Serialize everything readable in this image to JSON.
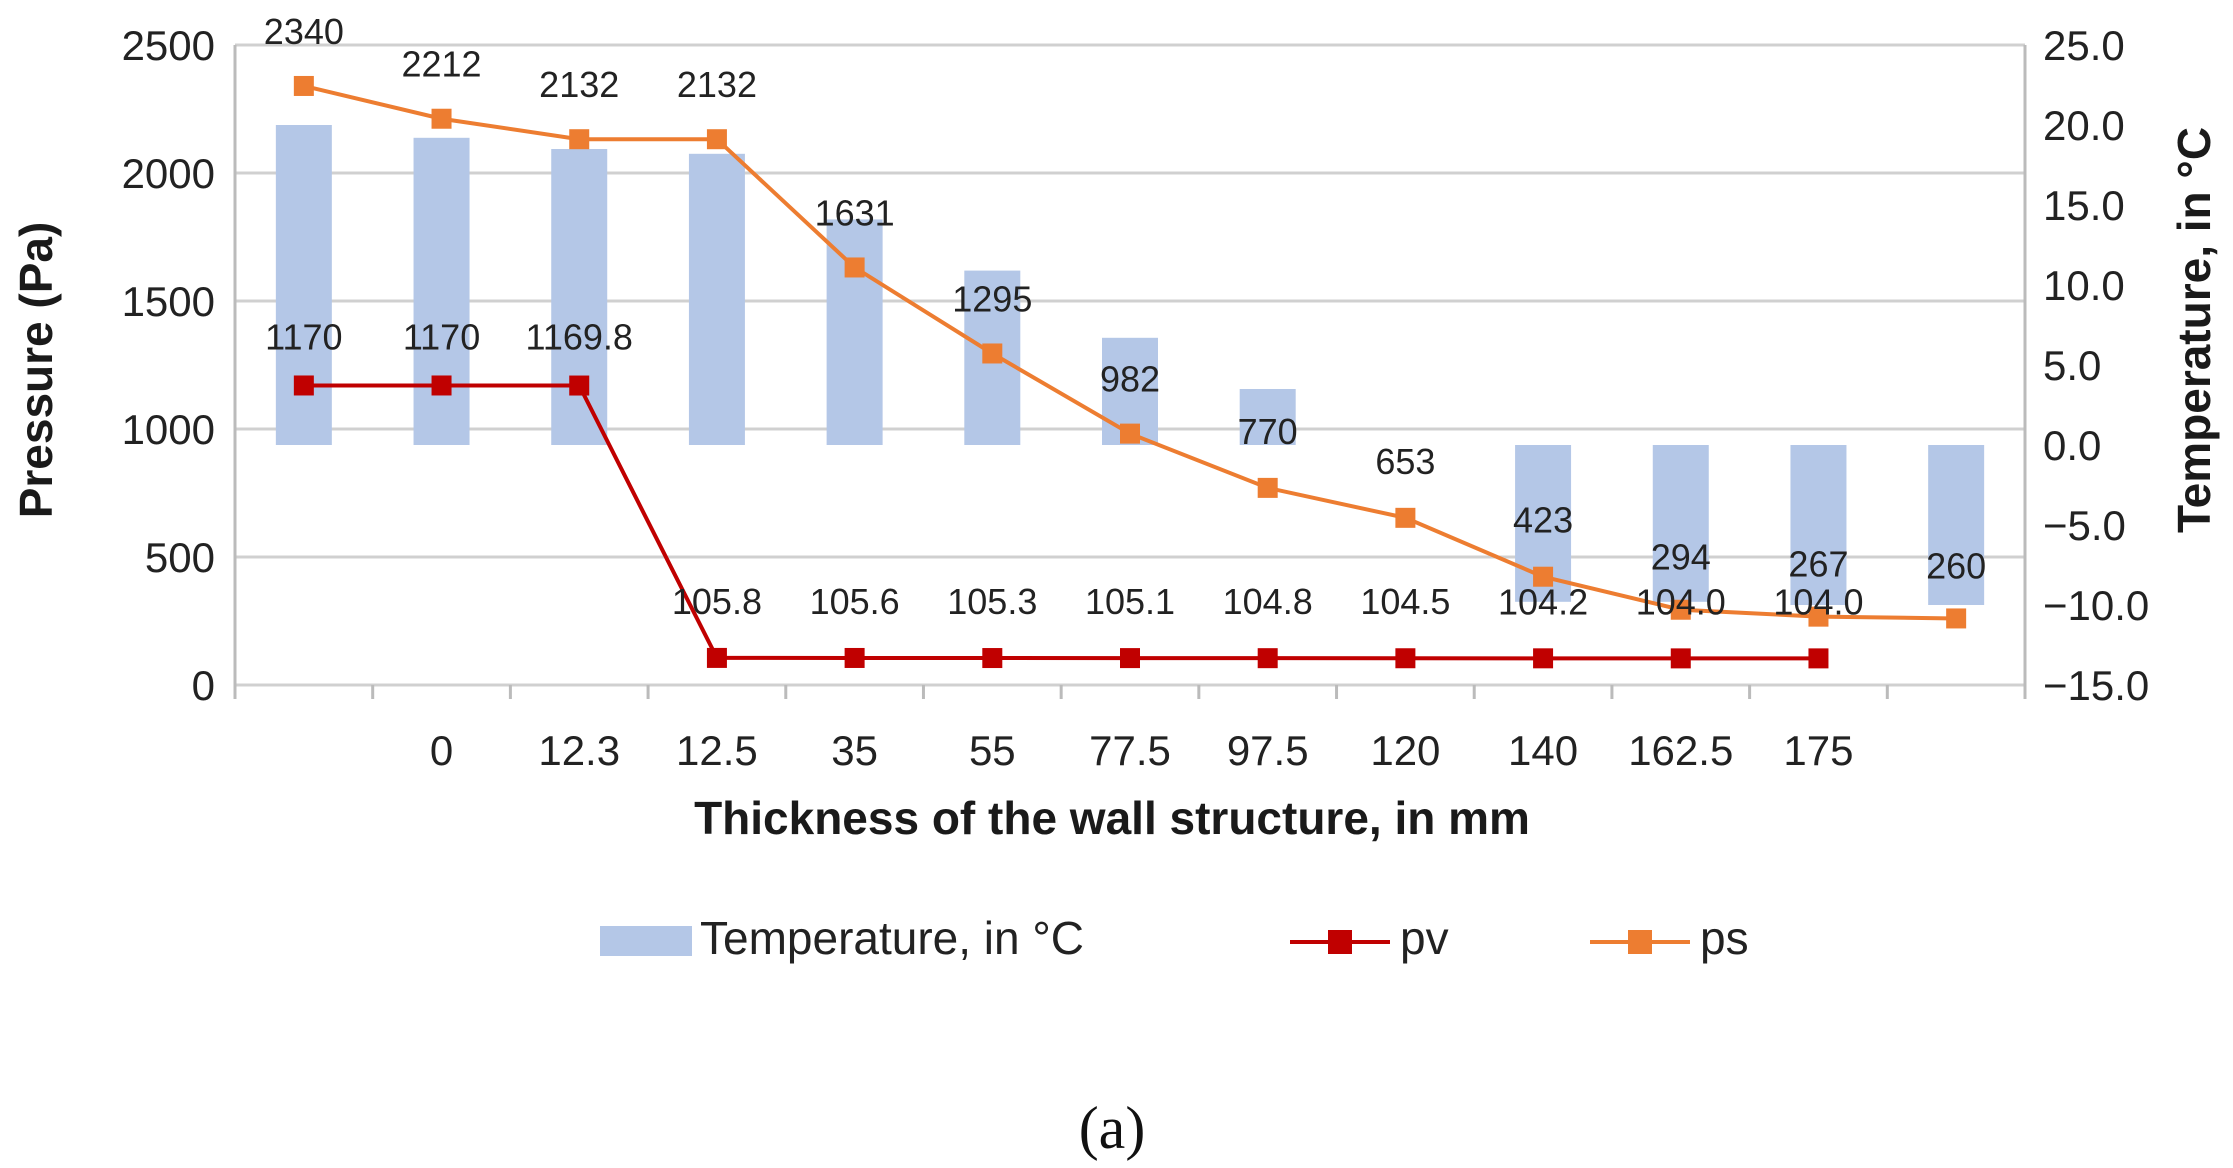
{
  "chart_data": {
    "type": "bar+line",
    "xlabel": "Thickness of the wall structure, in mm",
    "ylabel_left": "Pressure (Pa)",
    "ylabel_right": "Temperature, in °C",
    "categories": [
      "",
      "0",
      "12.3",
      "12.5",
      "35",
      "55",
      "77.5",
      "97.5",
      "120",
      "140",
      "162.5",
      "175",
      ""
    ],
    "ylim_left": [
      0,
      2500
    ],
    "yticks_left": [
      "0",
      "500",
      "1000",
      "1500",
      "2000",
      "2500"
    ],
    "ylim_right": [
      -15,
      25
    ],
    "yticks_right": [
      "−15.0",
      "−10.0",
      "−5.0",
      "0.0",
      "5.0",
      "10.0",
      "15.0",
      "20.0",
      "25.0"
    ],
    "series": [
      {
        "name": "Temperature, in °C",
        "kind": "bar",
        "axis": "right",
        "color": "#b4c7e7",
        "values": [
          20.0,
          19.2,
          18.5,
          18.2,
          14.1,
          10.9,
          6.7,
          3.5,
          0.0,
          -9.8,
          -9.8,
          -10.0,
          -10.0
        ]
      },
      {
        "name": "pv",
        "kind": "line",
        "axis": "left",
        "color": "#c00000",
        "values": [
          1170,
          1170,
          1169.8,
          105.8,
          105.6,
          105.3,
          105.1,
          104.8,
          104.5,
          104.2,
          104.0,
          104.0,
          null
        ],
        "labels": [
          "1170",
          "1170",
          "1169.8",
          "105.8",
          "105.6",
          "105.3",
          "105.1",
          "104.8",
          "104.5",
          "104.2",
          "104.0",
          "104.0",
          ""
        ]
      },
      {
        "name": "ps",
        "kind": "line",
        "axis": "left",
        "color": "#ed7d31",
        "values": [
          2340,
          2212,
          2132,
          2132,
          1631,
          1295,
          982,
          770,
          653,
          423,
          294,
          267,
          260
        ],
        "labels": [
          "2340",
          "2212",
          "2132",
          "2132",
          "1631",
          "1295",
          "982",
          "770",
          "653",
          "423",
          "294",
          "267",
          "260"
        ]
      }
    ],
    "grid": true,
    "legend": "bottom"
  },
  "caption": "(a)"
}
